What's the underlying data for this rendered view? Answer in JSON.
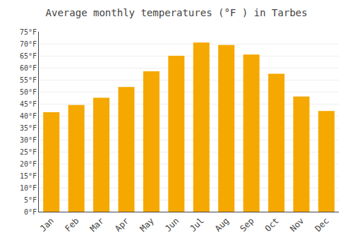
{
  "chart_data": {
    "type": "bar",
    "title": "Average monthly temperatures (°F ) in Tarbes",
    "categories": [
      "Jan",
      "Feb",
      "Mar",
      "Apr",
      "May",
      "Jun",
      "Jul",
      "Aug",
      "Sep",
      "Oct",
      "Nov",
      "Dec"
    ],
    "values": [
      41.5,
      44.5,
      47.5,
      52,
      58.5,
      65,
      70.5,
      69.5,
      65.5,
      57.5,
      48,
      42
    ],
    "color": "#F5A800",
    "ylim": [
      0,
      75
    ],
    "yticks": [
      {
        "value": 0,
        "label": "0°F"
      },
      {
        "value": 5,
        "label": "5°F"
      },
      {
        "value": 10,
        "label": "10°F"
      },
      {
        "value": 15,
        "label": "15°F"
      },
      {
        "value": 20,
        "label": "20°F"
      },
      {
        "value": 25,
        "label": "25°F"
      },
      {
        "value": 30,
        "label": "30°F"
      },
      {
        "value": 35,
        "label": "35°F"
      },
      {
        "value": 40,
        "label": "40°F"
      },
      {
        "value": 45,
        "label": "45°F"
      },
      {
        "value": 50,
        "label": "50°F"
      },
      {
        "value": 55,
        "label": "55°F"
      },
      {
        "value": 60,
        "label": "60°F"
      },
      {
        "value": 65,
        "label": "65°F"
      },
      {
        "value": 70,
        "label": "70°F"
      },
      {
        "value": 75,
        "label": "75°F"
      }
    ],
    "grid": true
  }
}
